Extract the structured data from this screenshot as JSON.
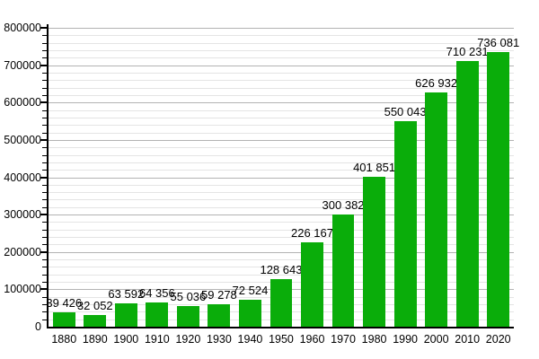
{
  "chart_data": {
    "type": "bar",
    "title": "",
    "xlabel": "",
    "ylabel": "",
    "categories": [
      "1880",
      "1890",
      "1900",
      "1910",
      "1920",
      "1930",
      "1940",
      "1950",
      "1960",
      "1970",
      "1980",
      "1990",
      "2000",
      "2010",
      "2020"
    ],
    "values": [
      39426,
      32052,
      63592,
      64356,
      55036,
      59278,
      72524,
      128643,
      226167,
      300382,
      401851,
      550043,
      626932,
      710231,
      736081
    ],
    "bar_labels": [
      "39 426",
      "32 052",
      "63 592",
      "64 356",
      "55 036",
      "59 278",
      "72 524",
      "128 643",
      "226 167",
      "300 382",
      "401 851",
      "550 043",
      "626 932",
      "710 231",
      "736 081"
    ],
    "ylim": [
      0,
      800000
    ],
    "y_major_step": 100000,
    "y_minor_step": 20000,
    "y_tick_labels": [
      "0",
      "100000",
      "200000",
      "300000",
      "400000",
      "500000",
      "600000",
      "700000",
      "800000"
    ],
    "grid": true,
    "legend": "none",
    "colors": {
      "bar": "#0aad0a",
      "major_gridline": "#b3b3b3",
      "minor_gridline": "#e4e4e4",
      "axis": "#000000",
      "text": "#000000",
      "background": "#ffffff"
    }
  }
}
